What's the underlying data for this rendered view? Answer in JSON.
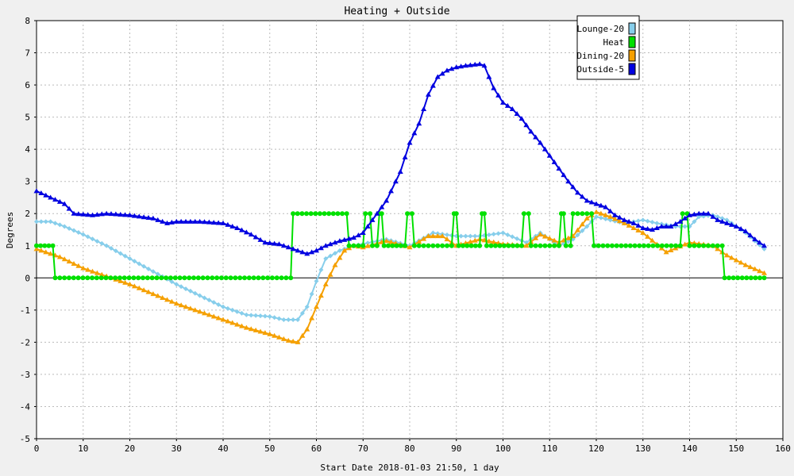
{
  "chart_data": {
    "type": "line",
    "title": "Heating + Outside",
    "xlabel": "Start Date 2018-01-03 21:50, 1 day",
    "ylabel": "Degrees",
    "xlim": [
      0,
      160
    ],
    "ylim": [
      -5,
      8
    ],
    "xticks": [
      0,
      10,
      20,
      30,
      40,
      50,
      60,
      70,
      80,
      90,
      100,
      110,
      120,
      130,
      140,
      150,
      160
    ],
    "yticks": [
      -5,
      -4,
      -3,
      -2,
      -1,
      0,
      1,
      2,
      3,
      4,
      5,
      6,
      7,
      8
    ],
    "grid": true,
    "legend": "top-right",
    "series": [
      {
        "name": "Lounge-20",
        "color": "#87ceeb",
        "marker": "diamond",
        "points": [
          [
            0,
            1.75
          ],
          [
            3,
            1.75
          ],
          [
            6,
            1.6
          ],
          [
            10,
            1.35
          ],
          [
            15,
            1.0
          ],
          [
            20,
            0.6
          ],
          [
            25,
            0.2
          ],
          [
            30,
            -0.2
          ],
          [
            35,
            -0.55
          ],
          [
            40,
            -0.9
          ],
          [
            45,
            -1.15
          ],
          [
            50,
            -1.2
          ],
          [
            53,
            -1.3
          ],
          [
            56,
            -1.3
          ],
          [
            58,
            -0.9
          ],
          [
            60,
            -0.1
          ],
          [
            62,
            0.6
          ],
          [
            65,
            0.85
          ],
          [
            68,
            1.0
          ],
          [
            75,
            1.2
          ],
          [
            80,
            1.0
          ],
          [
            85,
            1.4
          ],
          [
            90,
            1.3
          ],
          [
            95,
            1.3
          ],
          [
            100,
            1.4
          ],
          [
            105,
            1.1
          ],
          [
            108,
            1.4
          ],
          [
            112,
            1.0
          ],
          [
            115,
            1.2
          ],
          [
            118,
            1.6
          ],
          [
            120,
            1.9
          ],
          [
            123,
            1.8
          ],
          [
            126,
            1.7
          ],
          [
            130,
            1.8
          ],
          [
            133,
            1.7
          ],
          [
            137,
            1.6
          ],
          [
            140,
            1.6
          ],
          [
            142,
            1.9
          ],
          [
            145,
            1.95
          ],
          [
            148,
            1.8
          ],
          [
            152,
            1.4
          ],
          [
            156,
            0.9
          ]
        ]
      },
      {
        "name": "Heat",
        "color": "#00e000",
        "marker": "circle",
        "points": [
          [
            0,
            1
          ],
          [
            3.5,
            1
          ],
          [
            4,
            0
          ],
          [
            54.5,
            0
          ],
          [
            55,
            2
          ],
          [
            66.5,
            2
          ],
          [
            67,
            1
          ],
          [
            70,
            1
          ],
          [
            70.5,
            2
          ],
          [
            71.5,
            2
          ],
          [
            72,
            1
          ],
          [
            73,
            1
          ],
          [
            73.5,
            2
          ],
          [
            74,
            2
          ],
          [
            74.5,
            1
          ],
          [
            79,
            1
          ],
          [
            79.5,
            2
          ],
          [
            80.5,
            2
          ],
          [
            81,
            1
          ],
          [
            89,
            1
          ],
          [
            89.5,
            2
          ],
          [
            90,
            2
          ],
          [
            90.5,
            1
          ],
          [
            95,
            1
          ],
          [
            95.5,
            2
          ],
          [
            96,
            2
          ],
          [
            96.5,
            1
          ],
          [
            104,
            1
          ],
          [
            104.5,
            2
          ],
          [
            105.5,
            2
          ],
          [
            106,
            1
          ],
          [
            112,
            1
          ],
          [
            112.5,
            2
          ],
          [
            113,
            2
          ],
          [
            113.5,
            1
          ],
          [
            114.5,
            1
          ],
          [
            115,
            2
          ],
          [
            119,
            2
          ],
          [
            119.5,
            1
          ],
          [
            138,
            1
          ],
          [
            138.5,
            2
          ],
          [
            139.5,
            2
          ],
          [
            140,
            1
          ],
          [
            147,
            1
          ],
          [
            147.5,
            0
          ],
          [
            156,
            0
          ]
        ]
      },
      {
        "name": "Dining-20",
        "color": "#f5a000",
        "marker": "triangle",
        "points": [
          [
            0,
            0.9
          ],
          [
            5,
            0.65
          ],
          [
            10,
            0.3
          ],
          [
            15,
            0.05
          ],
          [
            20,
            -0.2
          ],
          [
            25,
            -0.5
          ],
          [
            30,
            -0.8
          ],
          [
            35,
            -1.05
          ],
          [
            40,
            -1.3
          ],
          [
            45,
            -1.55
          ],
          [
            50,
            -1.75
          ],
          [
            54,
            -1.95
          ],
          [
            56,
            -2.0
          ],
          [
            58,
            -1.6
          ],
          [
            60,
            -0.9
          ],
          [
            62,
            -0.2
          ],
          [
            64,
            0.4
          ],
          [
            66,
            0.85
          ],
          [
            68,
            1.0
          ],
          [
            70,
            0.95
          ],
          [
            75,
            1.15
          ],
          [
            80,
            0.95
          ],
          [
            84,
            1.3
          ],
          [
            87,
            1.3
          ],
          [
            90,
            1.0
          ],
          [
            95,
            1.2
          ],
          [
            100,
            1.05
          ],
          [
            105,
            1.0
          ],
          [
            108,
            1.35
          ],
          [
            112,
            1.1
          ],
          [
            115,
            1.3
          ],
          [
            118,
            1.85
          ],
          [
            120,
            2.05
          ],
          [
            123,
            1.9
          ],
          [
            126,
            1.7
          ],
          [
            130,
            1.4
          ],
          [
            135,
            0.8
          ],
          [
            140,
            1.1
          ],
          [
            145,
            1.0
          ],
          [
            148,
            0.7
          ],
          [
            152,
            0.4
          ],
          [
            156,
            0.15
          ]
        ]
      },
      {
        "name": "Outside-5",
        "color": "#0000e0",
        "marker": "triangle",
        "points": [
          [
            0,
            2.7
          ],
          [
            3,
            2.5
          ],
          [
            6,
            2.3
          ],
          [
            8,
            2.0
          ],
          [
            12,
            1.95
          ],
          [
            15,
            2.0
          ],
          [
            20,
            1.95
          ],
          [
            25,
            1.85
          ],
          [
            28,
            1.7
          ],
          [
            30,
            1.75
          ],
          [
            35,
            1.75
          ],
          [
            40,
            1.7
          ],
          [
            43,
            1.55
          ],
          [
            46,
            1.35
          ],
          [
            49,
            1.1
          ],
          [
            52,
            1.05
          ],
          [
            55,
            0.9
          ],
          [
            58,
            0.75
          ],
          [
            60,
            0.85
          ],
          [
            62,
            1.0
          ],
          [
            65,
            1.15
          ],
          [
            68,
            1.25
          ],
          [
            70,
            1.4
          ],
          [
            72,
            1.8
          ],
          [
            75,
            2.4
          ],
          [
            78,
            3.3
          ],
          [
            80,
            4.2
          ],
          [
            82,
            4.8
          ],
          [
            84,
            5.7
          ],
          [
            86,
            6.25
          ],
          [
            88,
            6.45
          ],
          [
            90,
            6.55
          ],
          [
            92,
            6.6
          ],
          [
            95,
            6.65
          ],
          [
            96,
            6.6
          ],
          [
            98,
            5.9
          ],
          [
            100,
            5.45
          ],
          [
            102,
            5.25
          ],
          [
            104,
            4.95
          ],
          [
            106,
            4.55
          ],
          [
            108,
            4.2
          ],
          [
            110,
            3.8
          ],
          [
            112,
            3.4
          ],
          [
            114,
            3.0
          ],
          [
            116,
            2.65
          ],
          [
            118,
            2.4
          ],
          [
            120,
            2.3
          ],
          [
            122,
            2.2
          ],
          [
            124,
            1.95
          ],
          [
            126,
            1.8
          ],
          [
            128,
            1.7
          ],
          [
            130,
            1.55
          ],
          [
            132,
            1.5
          ],
          [
            134,
            1.6
          ],
          [
            136,
            1.6
          ],
          [
            138,
            1.75
          ],
          [
            140,
            1.95
          ],
          [
            142,
            2.0
          ],
          [
            144,
            2.0
          ],
          [
            146,
            1.8
          ],
          [
            148,
            1.7
          ],
          [
            150,
            1.6
          ],
          [
            152,
            1.45
          ],
          [
            154,
            1.2
          ],
          [
            156,
            1.0
          ]
        ]
      }
    ]
  }
}
